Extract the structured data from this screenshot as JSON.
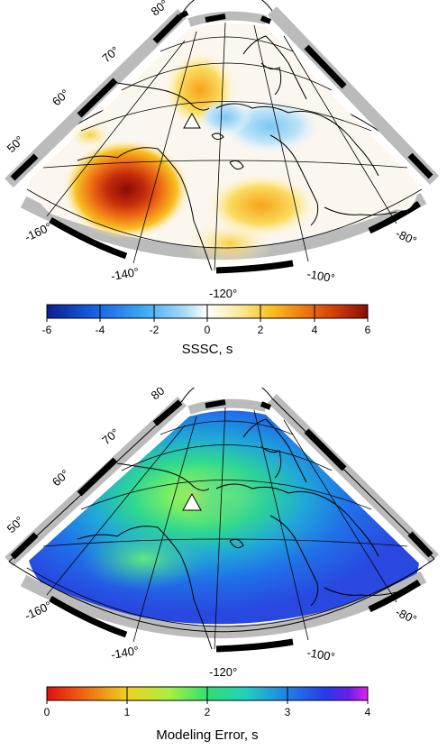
{
  "maps": [
    {
      "id": "sssc",
      "latitude_labels": [
        "80°",
        "70°",
        "60°",
        "50°"
      ],
      "longitude_labels": [
        "-160°",
        "-140°",
        "-120°",
        "-100°",
        "-80°"
      ],
      "colorbar": {
        "title": "SSSC, s",
        "ticks": [
          "-6",
          "-4",
          "-2",
          "0",
          "2",
          "4",
          "6"
        ],
        "colors": [
          "#0a1f8f",
          "#1660e6",
          "#3ea8f2",
          "#9ed8f6",
          "#ffffff",
          "#ffe99a",
          "#f8c020",
          "#f07a10",
          "#d23a0a",
          "#8a0c06"
        ]
      },
      "station_marker": "triangle-icon"
    },
    {
      "id": "modeling-error",
      "latitude_labels": [
        "80°",
        "70°",
        "60°",
        "50°"
      ],
      "longitude_labels": [
        "-160°",
        "-140°",
        "-120°",
        "-100°",
        "-80°"
      ],
      "colorbar": {
        "title": "Modeling Error, s",
        "ticks": [
          "0",
          "1",
          "2",
          "3",
          "4"
        ],
        "colors": [
          "#e01010",
          "#f06a10",
          "#f0c020",
          "#a8f040",
          "#30e070",
          "#20d0c0",
          "#2080e8",
          "#2838e8",
          "#6a1ee8",
          "#e020f0"
        ]
      },
      "station_marker": "triangle-icon"
    }
  ]
}
